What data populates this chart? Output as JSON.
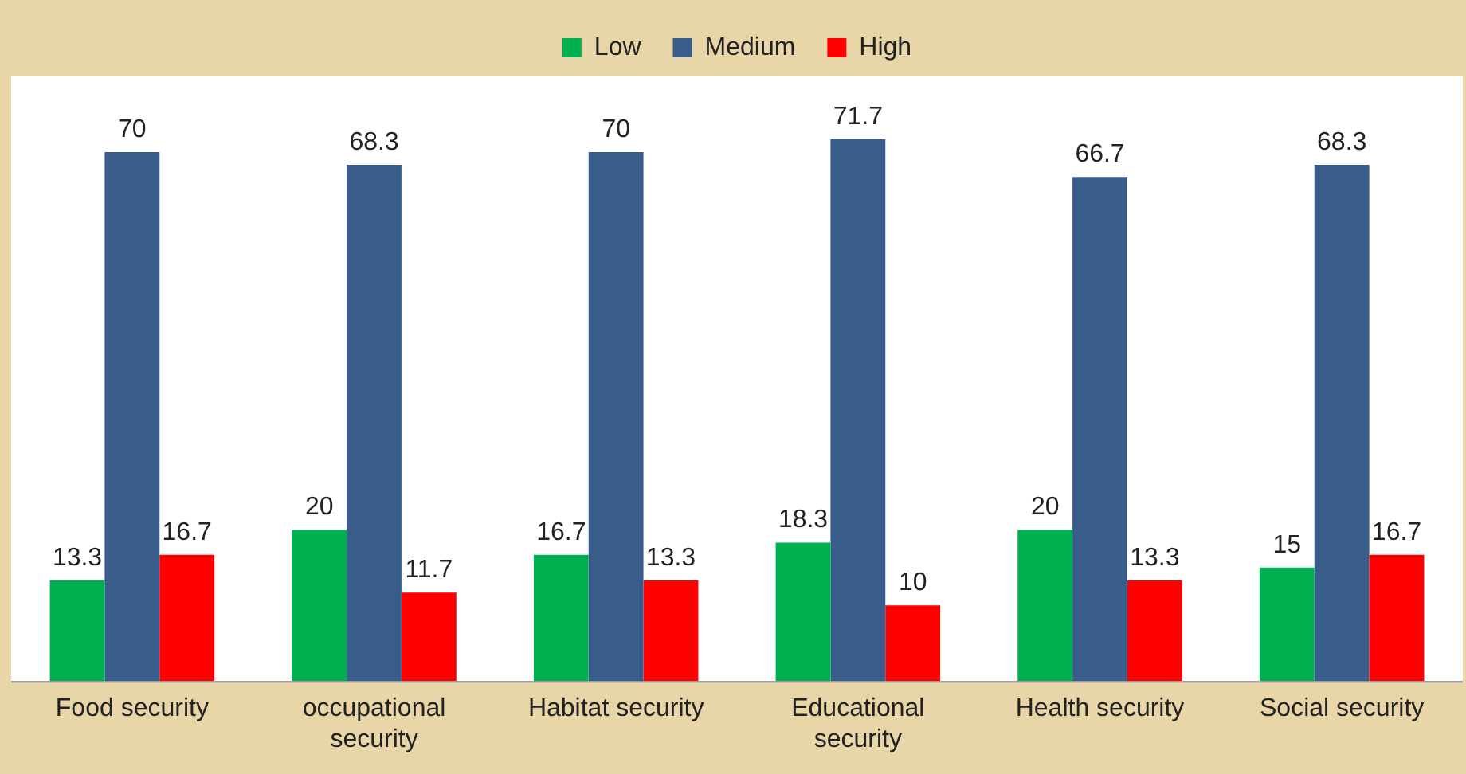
{
  "chart_data": {
    "type": "bar",
    "categories": [
      "Food security",
      "occupational security",
      "Habitat security",
      "Educational security",
      "Health security",
      "Social security"
    ],
    "series": [
      {
        "name": "Low",
        "color": "#00b050",
        "values": [
          13.3,
          20,
          16.7,
          18.3,
          20,
          15
        ]
      },
      {
        "name": "Medium",
        "color": "#385d8a",
        "values": [
          70,
          68.3,
          70,
          71.7,
          66.7,
          68.3
        ]
      },
      {
        "name": "High",
        "color": "#ff0000",
        "values": [
          16.7,
          11.7,
          13.3,
          10,
          13.3,
          16.7
        ]
      }
    ],
    "ylim": [
      0,
      80
    ],
    "data_labels": true,
    "legend": "top",
    "grid": false,
    "tick_labels": "x"
  }
}
